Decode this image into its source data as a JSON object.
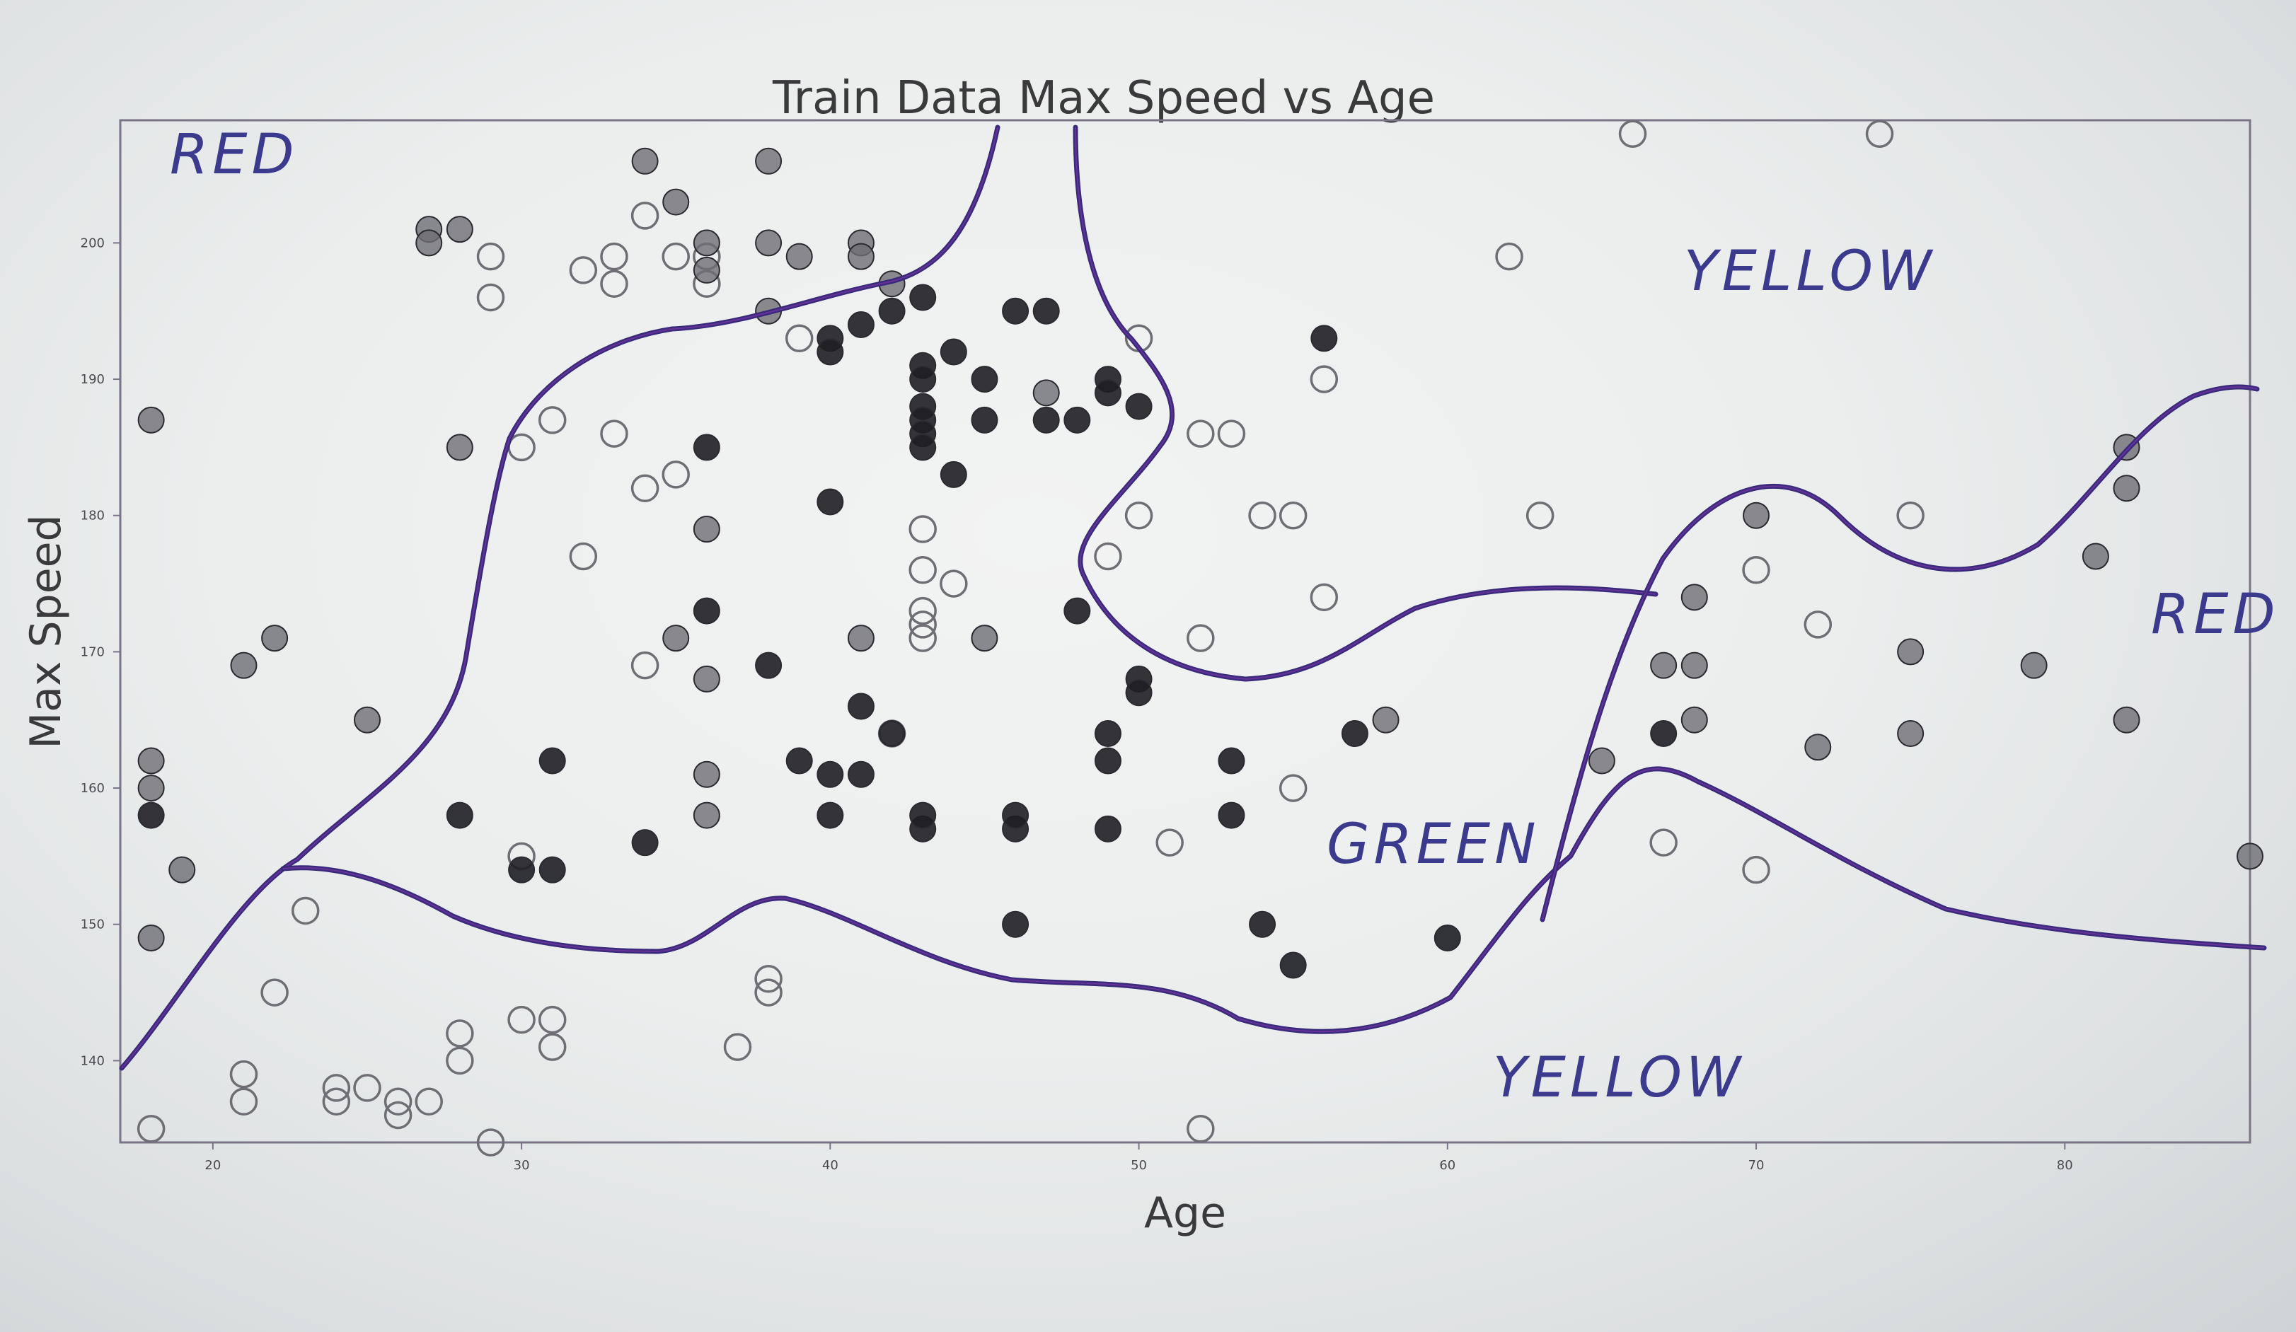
{
  "chart_data": {
    "type": "scatter",
    "title": "Train Data Max Speed vs Age",
    "xlabel": "Age",
    "ylabel": "Max Speed",
    "xlim": [
      17,
      86
    ],
    "ylim": [
      134,
      209
    ],
    "xticks": [
      20,
      30,
      40,
      50,
      60,
      70,
      80
    ],
    "yticks": [
      140,
      150,
      160,
      170,
      180,
      190,
      200
    ],
    "grid": false,
    "annotations": [
      "RED",
      "YELLOW",
      "RED",
      "GREEN",
      "YELLOW"
    ],
    "series": [
      {
        "style": "filled-dark",
        "color": "#1e1e24",
        "points": [
          [
            18,
            158
          ],
          [
            30,
            154
          ],
          [
            31,
            154
          ],
          [
            31,
            162
          ],
          [
            28,
            158
          ],
          [
            34,
            156
          ],
          [
            36,
            173
          ],
          [
            36,
            185
          ],
          [
            38,
            169
          ],
          [
            39,
            162
          ],
          [
            40,
            158
          ],
          [
            40,
            161
          ],
          [
            40,
            181
          ],
          [
            40,
            193
          ],
          [
            40,
            192
          ],
          [
            41,
            161
          ],
          [
            41,
            166
          ],
          [
            41,
            194
          ],
          [
            42,
            164
          ],
          [
            42,
            195
          ],
          [
            43,
            196
          ],
          [
            43,
            191
          ],
          [
            43,
            190
          ],
          [
            43,
            188
          ],
          [
            43,
            187
          ],
          [
            43,
            186
          ],
          [
            43,
            185
          ],
          [
            43,
            157
          ],
          [
            43,
            158
          ],
          [
            44,
            183
          ],
          [
            44,
            192
          ],
          [
            45,
            190
          ],
          [
            45,
            187
          ],
          [
            46,
            195
          ],
          [
            46,
            157
          ],
          [
            46,
            158
          ],
          [
            46,
            150
          ],
          [
            47,
            195
          ],
          [
            47,
            187
          ],
          [
            48,
            187
          ],
          [
            48,
            173
          ],
          [
            49,
            190
          ],
          [
            49,
            189
          ],
          [
            49,
            164
          ],
          [
            49,
            162
          ],
          [
            49,
            157
          ],
          [
            50,
            188
          ],
          [
            50,
            168
          ],
          [
            50,
            167
          ],
          [
            53,
            162
          ],
          [
            53,
            158
          ],
          [
            54,
            150
          ],
          [
            55,
            147
          ],
          [
            56,
            193
          ],
          [
            57,
            164
          ],
          [
            60,
            149
          ],
          [
            67,
            164
          ]
        ]
      },
      {
        "style": "filled-gray",
        "color": "#6e6e74",
        "points": [
          [
            18,
            162
          ],
          [
            18,
            160
          ],
          [
            18,
            149
          ],
          [
            18,
            187
          ],
          [
            19,
            154
          ],
          [
            21,
            169
          ],
          [
            22,
            171
          ],
          [
            25,
            165
          ],
          [
            27,
            201
          ],
          [
            27,
            200
          ],
          [
            28,
            201
          ],
          [
            28,
            185
          ],
          [
            34,
            206
          ],
          [
            35,
            203
          ],
          [
            36,
            200
          ],
          [
            36,
            198
          ],
          [
            36,
            179
          ],
          [
            36,
            168
          ],
          [
            36,
            161
          ],
          [
            36,
            158
          ],
          [
            35,
            171
          ],
          [
            38,
            206
          ],
          [
            38,
            195
          ],
          [
            38,
            200
          ],
          [
            39,
            199
          ],
          [
            41,
            200
          ],
          [
            41,
            199
          ],
          [
            41,
            171
          ],
          [
            42,
            197
          ],
          [
            45,
            171
          ],
          [
            47,
            189
          ],
          [
            58,
            165
          ],
          [
            65,
            162
          ],
          [
            67,
            169
          ],
          [
            68,
            169
          ],
          [
            68,
            174
          ],
          [
            68,
            165
          ],
          [
            70,
            180
          ],
          [
            75,
            170
          ],
          [
            75,
            164
          ],
          [
            72,
            163
          ],
          [
            79,
            169
          ],
          [
            81,
            177
          ],
          [
            82,
            185
          ],
          [
            82,
            182
          ],
          [
            82,
            165
          ],
          [
            86,
            155
          ]
        ]
      },
      {
        "style": "hollow",
        "color": "#6e6e74",
        "points": [
          [
            18,
            135
          ],
          [
            21,
            139
          ],
          [
            21,
            137
          ],
          [
            22,
            145
          ],
          [
            23,
            151
          ],
          [
            24,
            138
          ],
          [
            24,
            137
          ],
          [
            25,
            138
          ],
          [
            26,
            137
          ],
          [
            26,
            136
          ],
          [
            27,
            137
          ],
          [
            28,
            142
          ],
          [
            28,
            140
          ],
          [
            29,
            134
          ],
          [
            30,
            143
          ],
          [
            30,
            155
          ],
          [
            31,
            143
          ],
          [
            31,
            141
          ],
          [
            29,
            199
          ],
          [
            29,
            196
          ],
          [
            30,
            185
          ],
          [
            31,
            187
          ],
          [
            32,
            198
          ],
          [
            32,
            177
          ],
          [
            33,
            199
          ],
          [
            33,
            197
          ],
          [
            33,
            186
          ],
          [
            34,
            202
          ],
          [
            34,
            182
          ],
          [
            34,
            169
          ],
          [
            35,
            199
          ],
          [
            35,
            183
          ],
          [
            36,
            197
          ],
          [
            36,
            199
          ],
          [
            37,
            141
          ],
          [
            38,
            145
          ],
          [
            38,
            146
          ],
          [
            39,
            193
          ],
          [
            42,
            164
          ],
          [
            43,
            179
          ],
          [
            43,
            176
          ],
          [
            43,
            173
          ],
          [
            43,
            172
          ],
          [
            43,
            171
          ],
          [
            44,
            175
          ],
          [
            50,
            193
          ],
          [
            50,
            180
          ],
          [
            49,
            177
          ],
          [
            51,
            156
          ],
          [
            52,
            186
          ],
          [
            52,
            171
          ],
          [
            52,
            135
          ],
          [
            53,
            186
          ],
          [
            54,
            180
          ],
          [
            55,
            180
          ],
          [
            56,
            190
          ],
          [
            56,
            174
          ],
          [
            55,
            160
          ],
          [
            62,
            199
          ],
          [
            63,
            180
          ],
          [
            66,
            208
          ],
          [
            67,
            156
          ],
          [
            70,
            176
          ],
          [
            70,
            154
          ],
          [
            72,
            172
          ],
          [
            74,
            208
          ],
          [
            75,
            180
          ]
        ]
      }
    ]
  }
}
